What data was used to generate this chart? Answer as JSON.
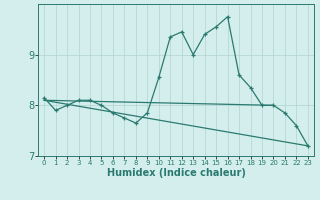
{
  "xlabel": "Humidex (Indice chaleur)",
  "background_color": "#d4eeed",
  "grid_color": "#afd4d0",
  "line_color": "#2a7a70",
  "xlim": [
    -0.5,
    23.5
  ],
  "ylim": [
    7.0,
    10.0
  ],
  "yticks": [
    7,
    8,
    9
  ],
  "xticks": [
    0,
    1,
    2,
    3,
    4,
    5,
    6,
    7,
    8,
    9,
    10,
    11,
    12,
    13,
    14,
    15,
    16,
    17,
    18,
    19,
    20,
    21,
    22,
    23
  ],
  "series1_x": [
    0,
    1,
    2,
    3,
    4,
    5,
    6,
    7,
    8,
    9,
    10,
    11,
    12,
    13,
    14,
    15,
    16,
    17,
    18,
    19,
    20,
    21,
    22,
    23
  ],
  "series1_y": [
    8.15,
    7.9,
    8.0,
    8.1,
    8.1,
    8.0,
    7.85,
    7.75,
    7.65,
    7.85,
    8.55,
    9.35,
    9.45,
    9.0,
    9.4,
    9.55,
    9.75,
    8.6,
    8.35,
    8.0,
    8.0,
    7.85,
    7.6,
    7.2
  ],
  "series2_x": [
    0,
    20
  ],
  "series2_y": [
    8.1,
    8.0
  ],
  "series3_x": [
    0,
    23
  ],
  "series3_y": [
    8.1,
    7.2
  ]
}
